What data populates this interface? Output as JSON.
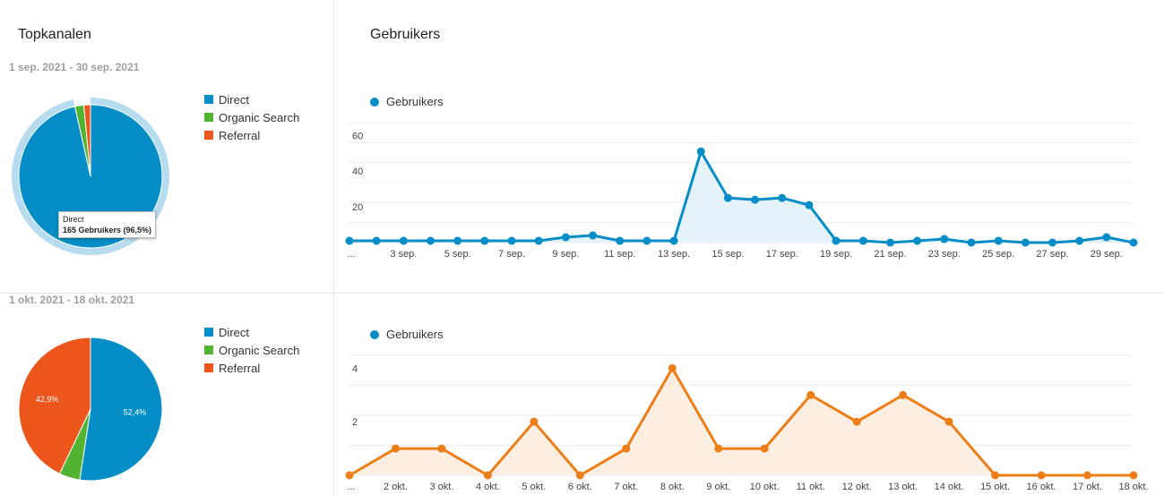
{
  "left": {
    "title": "Topkanalen",
    "range1": "1 sep. 2021 - 30 sep. 2021",
    "range2": "1 okt. 2021 - 18 okt. 2021",
    "legend": [
      {
        "label": "Direct",
        "color": "#058dc7"
      },
      {
        "label": "Organic Search",
        "color": "#50b432"
      },
      {
        "label": "Referral",
        "color": "#ed561b"
      }
    ],
    "tooltip": {
      "line1": "Direct",
      "line2": "165 Gebruikers (96,5%)"
    }
  },
  "right": {
    "title": "Gebruikers",
    "series_label": "Gebruikers"
  },
  "chart_data": [
    {
      "type": "pie",
      "title": "Topkanalen",
      "subtitle": "1 sep. 2021 - 30 sep. 2021",
      "labels": [
        "Direct",
        "Organic Search",
        "Referral"
      ],
      "values": [
        96.5,
        2.0,
        1.5
      ],
      "colors": [
        "#058dc7",
        "#50b432",
        "#ed561b"
      ],
      "highlighted": "Direct"
    },
    {
      "type": "pie",
      "subtitle": "1 okt. 2021 - 18 okt. 2021",
      "labels": [
        "Direct",
        "Organic Search",
        "Referral"
      ],
      "values": [
        52.4,
        4.7,
        42.9
      ],
      "slice_labels": [
        "52,4%",
        "",
        "42,9%"
      ],
      "colors": [
        "#058dc7",
        "#50b432",
        "#ed561b"
      ]
    },
    {
      "type": "area",
      "title": "Gebruikers",
      "series": [
        {
          "name": "Gebruikers",
          "color": "#058dc7",
          "values": [
            1,
            1,
            1,
            1,
            1,
            1,
            1,
            1,
            3,
            4,
            1,
            1,
            1,
            51,
            25,
            24,
            25,
            21,
            1,
            1,
            0,
            1,
            2,
            0,
            1,
            0,
            0,
            1,
            3,
            0
          ]
        }
      ],
      "x": [
        "1 sep.",
        "2 sep.",
        "3 sep.",
        "4 sep.",
        "5 sep.",
        "6 sep.",
        "7 sep.",
        "8 sep.",
        "9 sep.",
        "10 sep.",
        "11 sep.",
        "12 sep.",
        "13 sep.",
        "14 sep.",
        "15 sep.",
        "16 sep.",
        "17 sep.",
        "18 sep.",
        "19 sep.",
        "20 sep.",
        "21 sep.",
        "22 sep.",
        "23 sep.",
        "24 sep.",
        "25 sep.",
        "26 sep.",
        "27 sep.",
        "28 sep.",
        "29 sep.",
        "30 sep."
      ],
      "xtick_labels": [
        "...",
        "",
        "3 sep.",
        "",
        "5 sep.",
        "",
        "7 sep.",
        "",
        "9 sep.",
        "",
        "11 sep.",
        "",
        "13 sep.",
        "",
        "15 sep.",
        "",
        "17 sep.",
        "",
        "19 sep.",
        "",
        "21 sep.",
        "",
        "23 sep.",
        "",
        "25 sep.",
        "",
        "27 sep.",
        "",
        "29 sep.",
        ""
      ],
      "yticks": [
        "20",
        "40",
        "60"
      ],
      "ylim": [
        0,
        60
      ],
      "legend": "top-left",
      "grid": true
    },
    {
      "type": "area",
      "series": [
        {
          "name": "Gebruikers",
          "color": "#ed7e17",
          "values": [
            0,
            1,
            1,
            0,
            2,
            0,
            1,
            4,
            1,
            1,
            3,
            2,
            3,
            2,
            0,
            0,
            0,
            0
          ]
        }
      ],
      "x": [
        "1 okt.",
        "2 okt.",
        "3 okt.",
        "4 okt.",
        "5 okt.",
        "6 okt.",
        "7 okt.",
        "8 okt.",
        "9 okt.",
        "10 okt.",
        "11 okt.",
        "12 okt.",
        "13 okt.",
        "14 okt.",
        "15 okt.",
        "16 okt.",
        "17 okt.",
        "18 okt."
      ],
      "xtick_labels": [
        "...",
        "2 okt.",
        "3 okt.",
        "4 okt.",
        "5 okt.",
        "6 okt.",
        "7 okt.",
        "8 okt.",
        "9 okt.",
        "10 okt.",
        "11 okt.",
        "12 okt.",
        "13 okt.",
        "14 okt.",
        "15 okt.",
        "16 okt.",
        "17 okt.",
        "18 okt."
      ],
      "yticks": [
        "2",
        "4"
      ],
      "ylim": [
        0,
        4
      ],
      "legend": "top-left",
      "grid": true
    }
  ]
}
